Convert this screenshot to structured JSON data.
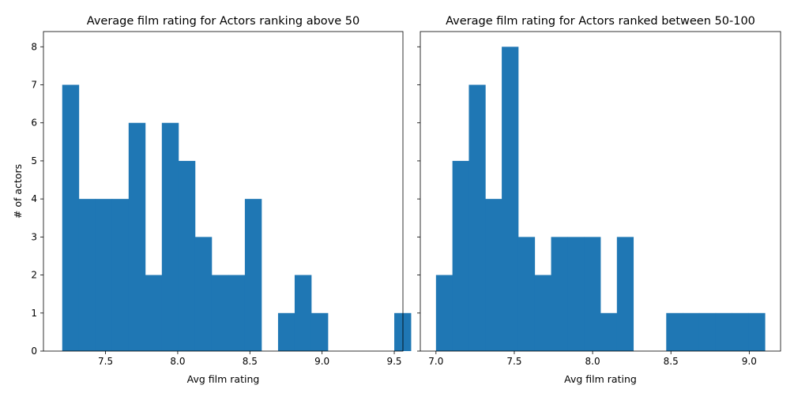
{
  "chart_data": [
    {
      "type": "bar",
      "title": "Average film rating for Actors ranking above 50",
      "xlabel": "Avg film rating",
      "ylabel": "# of actors",
      "xlim": [
        7.07,
        9.56
      ],
      "ylim": [
        0,
        8.4
      ],
      "xticks": [
        7.5,
        8.0,
        8.5,
        9.0,
        9.5
      ],
      "xtick_labels": [
        "7.5",
        "8.0",
        "8.5",
        "9.0",
        "9.5"
      ],
      "yticks": [
        0,
        1,
        2,
        3,
        4,
        5,
        6,
        7,
        8
      ],
      "ytick_labels": [
        "0",
        "1",
        "2",
        "3",
        "4",
        "5",
        "6",
        "7",
        "8"
      ],
      "bins_start": 7.2,
      "bin_width": 0.115,
      "values": [
        7,
        4,
        4,
        4,
        6,
        2,
        6,
        5,
        3,
        2,
        2,
        4,
        0,
        1,
        2,
        1,
        0,
        0,
        0,
        0,
        1
      ],
      "grid": false,
      "color": "#1f77b4"
    },
    {
      "type": "bar",
      "title": "Average film rating for Actors ranked between 50-100",
      "xlabel": "Avg film rating",
      "ylabel": "",
      "xlim": [
        6.9,
        9.2
      ],
      "ylim": [
        0,
        8.4
      ],
      "xticks": [
        7.0,
        7.5,
        8.0,
        8.5,
        9.0
      ],
      "xtick_labels": [
        "7.0",
        "7.5",
        "8.0",
        "8.5",
        "9.0"
      ],
      "yticks": [
        0,
        1,
        2,
        3,
        4,
        5,
        6,
        7,
        8
      ],
      "ytick_labels": [
        "",
        "",
        "",
        "",
        "",
        "",
        "",
        "",
        ""
      ],
      "bins_start": 7.0,
      "bin_width": 0.105,
      "values": [
        2,
        5,
        7,
        4,
        8,
        3,
        2,
        3,
        3,
        3,
        1,
        3,
        0,
        0,
        1,
        1,
        1,
        1,
        1,
        1
      ],
      "grid": false,
      "color": "#1f77b4"
    }
  ]
}
